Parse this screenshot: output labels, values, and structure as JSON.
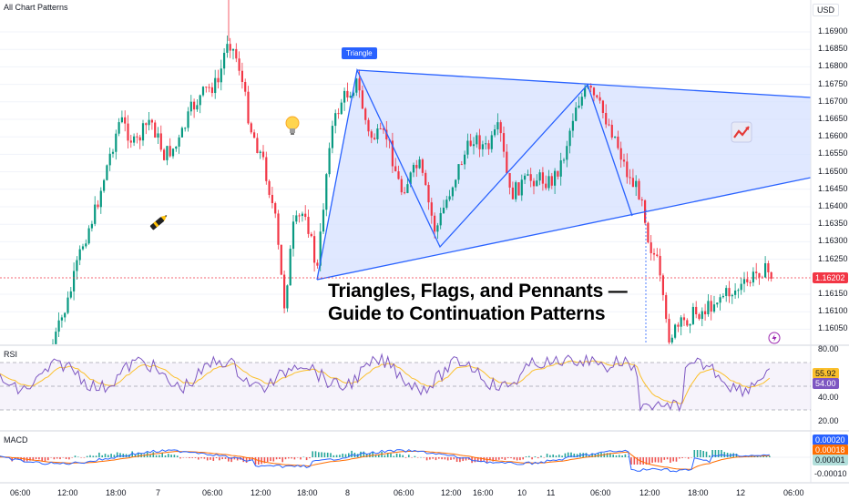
{
  "header": {
    "title": "All Chart Patterns",
    "currency": "USD"
  },
  "overlay": {
    "triangle_badge": "Triangle",
    "headline_line1": "Triangles, Flags, and Pennants —",
    "headline_line2": "Guide to Continuation Patterns"
  },
  "price_axis": {
    "ticks": [
      "1.16900",
      "1.16850",
      "1.16800",
      "1.16750",
      "1.16700",
      "1.16650",
      "1.16600",
      "1.16550",
      "1.16500",
      "1.16450",
      "1.16400",
      "1.16350",
      "1.16300",
      "1.16250",
      "1.16150",
      "1.16100",
      "1.16050"
    ],
    "current_price": "1.16202",
    "current_color": "#f23645"
  },
  "rsi": {
    "label": "RSI",
    "ticks": [
      "80.00",
      "60.00",
      "40.00",
      "20.00"
    ],
    "value_rsi": "55.92",
    "value_ma": "54.00",
    "rsi_color": "#7e57c2",
    "ma_color": "#fbc02d"
  },
  "macd": {
    "label": "MACD",
    "ticks": [
      "0.00020",
      "0.00018",
      "0.00001",
      "-0.00010"
    ],
    "tag_macd": "0.00020",
    "tag_signal": "0.00018",
    "tag_hist": "0.00001",
    "tag_zero": "-0.00010",
    "macd_color": "#2962ff",
    "signal_color": "#ff6d00",
    "hist_color": "#26a69a"
  },
  "time_axis": {
    "labels": [
      "06:00",
      "12:00",
      "18:00",
      "7",
      "06:00",
      "12:00",
      "18:00",
      "8",
      "06:00",
      "12:00",
      "16:00",
      "10",
      "11",
      "06:00",
      "12:00",
      "18:00",
      "12",
      "06:00"
    ]
  },
  "colors": {
    "up": "#089981",
    "down": "#f23645",
    "pattern_line": "#2962ff",
    "pattern_fill": "#d6e0ff",
    "badge": "#2962ff"
  },
  "icons": [
    "lightbulb-icon",
    "pen-icon",
    "trend-chart-icon",
    "lightning-icon"
  ]
}
